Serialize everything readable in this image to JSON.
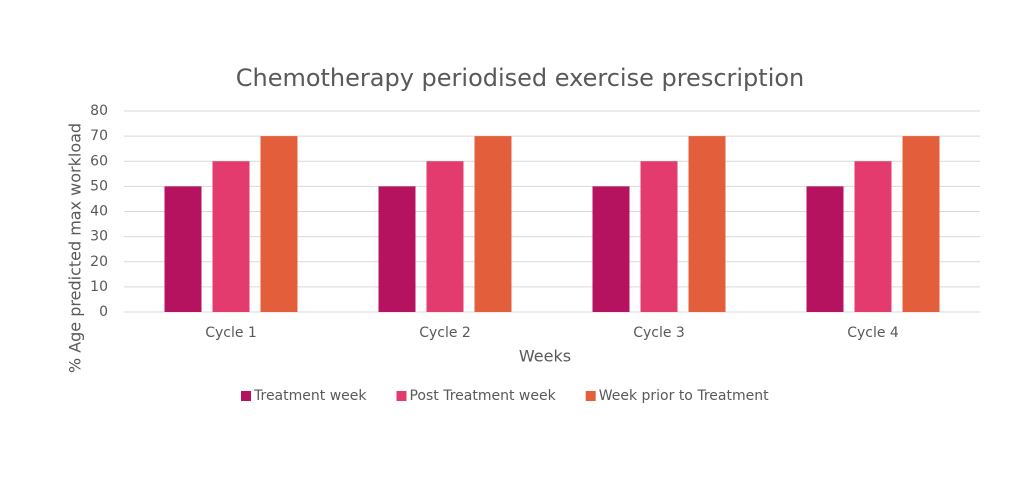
{
  "chart_data": {
    "type": "bar",
    "title": "Chemotherapy periodised exercise prescription",
    "x_label": "Weeks",
    "y_label": "% Age predicted max workload",
    "categories": [
      "Cycle 1",
      "Cycle 2",
      "Cycle 3",
      "Cycle 4"
    ],
    "series": [
      {
        "name": "Treatment week",
        "color": "#b5135f",
        "values": [
          50,
          50,
          50,
          50
        ]
      },
      {
        "name": "Post Treatment week",
        "color": "#e33b6e",
        "values": [
          60,
          60,
          60,
          60
        ]
      },
      {
        "name": "Week prior to Treatment",
        "color": "#e35f3c",
        "values": [
          70,
          70,
          70,
          70
        ]
      }
    ],
    "ylim": [
      0,
      80
    ],
    "yticks": [
      0,
      10,
      20,
      30,
      40,
      50,
      60,
      70,
      80
    ],
    "grid": true,
    "legend": "bottom"
  }
}
